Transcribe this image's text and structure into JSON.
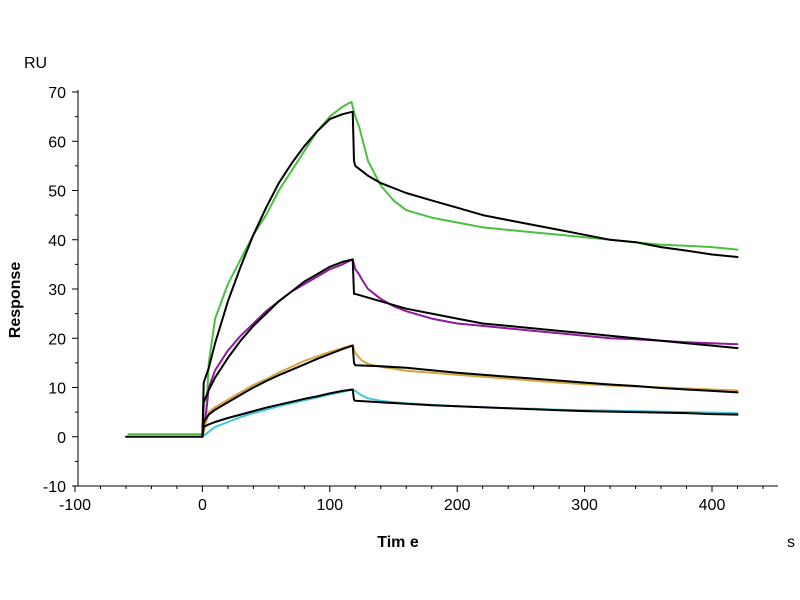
{
  "chart_data": {
    "type": "line",
    "title": "",
    "xlabel": "Tim e",
    "xunit": "s",
    "ylabel": "Response",
    "yunit": "RU",
    "xlim": [
      -100,
      460
    ],
    "ylim": [
      -10,
      70
    ],
    "xticks": [
      -100,
      0,
      100,
      200,
      300,
      400
    ],
    "yticks": [
      -10,
      0,
      10,
      20,
      30,
      40,
      50,
      60,
      70
    ],
    "grid": false,
    "legend": "none",
    "series": [
      {
        "color": "#4cbf40",
        "x": [
          -58,
          -30,
          0,
          3,
          5,
          10,
          20,
          30,
          40,
          50,
          60,
          70,
          80,
          90,
          100,
          110,
          117,
          120,
          123,
          125,
          130,
          140,
          150,
          160,
          180,
          200,
          220,
          240,
          260,
          280,
          300,
          320,
          340,
          360,
          380,
          400,
          420
        ],
        "y": [
          0.5,
          0.5,
          0.5,
          5,
          15,
          24,
          31,
          36,
          41,
          45,
          50,
          54,
          58,
          62,
          65,
          67,
          68,
          65,
          63,
          61,
          56,
          51,
          48,
          46,
          44.5,
          43.5,
          42.5,
          42,
          41.5,
          41,
          40.5,
          40,
          39.5,
          39,
          38.8,
          38.5,
          38
        ]
      },
      {
        "color": "#000000",
        "x": [
          -60,
          0,
          1,
          5,
          10,
          20,
          30,
          40,
          50,
          60,
          70,
          80,
          90,
          100,
          110,
          118,
          119,
          120,
          130,
          140,
          150,
          160,
          180,
          200,
          220,
          240,
          260,
          280,
          300,
          320,
          340,
          360,
          380,
          400,
          420
        ],
        "y": [
          0,
          0,
          11,
          14,
          19,
          27.5,
          34.5,
          41,
          46.5,
          51.5,
          55.5,
          59,
          62,
          64.5,
          65.5,
          66,
          56,
          55,
          53,
          51.5,
          50.5,
          49.5,
          48,
          46.5,
          45,
          44,
          43,
          42,
          41,
          40,
          39.5,
          38.5,
          37.8,
          37,
          36.5
        ]
      },
      {
        "color": "#8e1a9c",
        "x": [
          0,
          3,
          5,
          10,
          20,
          30,
          40,
          50,
          60,
          70,
          80,
          90,
          100,
          110,
          118,
          120,
          123,
          125,
          130,
          140,
          150,
          160,
          180,
          200,
          220,
          240,
          260,
          280,
          300,
          320,
          340,
          360,
          380,
          400,
          420
        ],
        "y": [
          0,
          5,
          10,
          13.5,
          17.5,
          20.5,
          23,
          25.5,
          27.5,
          29.5,
          31,
          32.5,
          34,
          35,
          36,
          34,
          33,
          32,
          30,
          28,
          26.5,
          25.5,
          24,
          23,
          22.5,
          22,
          21.5,
          21,
          20.5,
          20,
          19.8,
          19.5,
          19.2,
          19,
          18.8
        ]
      },
      {
        "color": "#000000",
        "x": [
          0,
          1,
          5,
          10,
          20,
          30,
          40,
          50,
          60,
          70,
          80,
          90,
          100,
          110,
          118,
          119,
          120,
          140,
          160,
          180,
          200,
          220,
          240,
          260,
          280,
          300,
          320,
          340,
          360,
          380,
          400,
          420
        ],
        "y": [
          0,
          7,
          9.5,
          12,
          16,
          19.5,
          22.5,
          25,
          27.5,
          29.5,
          31.5,
          33,
          34.5,
          35.5,
          36,
          29,
          29,
          27.5,
          26,
          25,
          24,
          23,
          22.5,
          22,
          21.5,
          21,
          20.5,
          20,
          19.5,
          19,
          18.5,
          18
        ]
      },
      {
        "color": "#d4a53f",
        "x": [
          0,
          3,
          5,
          10,
          20,
          30,
          40,
          50,
          60,
          70,
          80,
          90,
          100,
          110,
          118,
          120,
          125,
          130,
          140,
          150,
          160,
          180,
          200,
          220,
          240,
          260,
          280,
          300,
          320,
          340,
          360,
          380,
          400,
          420
        ],
        "y": [
          0,
          3,
          5,
          6,
          7.5,
          9,
          10.5,
          11.7,
          13,
          14.2,
          15.4,
          16.3,
          17.2,
          18,
          18.6,
          17,
          15.5,
          14.8,
          14.2,
          13.8,
          13.4,
          13,
          12.6,
          12.2,
          11.8,
          11.4,
          11,
          10.7,
          10.4,
          10.2,
          10,
          9.8,
          9.6,
          9.4
        ]
      },
      {
        "color": "#000000",
        "x": [
          0,
          1,
          5,
          10,
          20,
          30,
          40,
          50,
          60,
          70,
          80,
          90,
          100,
          110,
          118,
          119,
          120,
          140,
          160,
          180,
          200,
          220,
          240,
          260,
          280,
          300,
          320,
          340,
          360,
          380,
          400,
          420
        ],
        "y": [
          0,
          3,
          4.5,
          5.5,
          7,
          8.5,
          10,
          11.3,
          12.5,
          13.6,
          14.7,
          15.8,
          16.8,
          17.8,
          18.5,
          15,
          14.5,
          14.3,
          14,
          13.5,
          13,
          12.6,
          12.2,
          11.8,
          11.4,
          11,
          10.6,
          10.3,
          9.9,
          9.6,
          9.3,
          9
        ]
      },
      {
        "color": "#3cc8d8",
        "x": [
          0,
          5,
          10,
          20,
          30,
          40,
          50,
          60,
          70,
          80,
          90,
          100,
          110,
          118,
          120,
          125,
          130,
          140,
          150,
          160,
          180,
          200,
          220,
          240,
          260,
          280,
          300,
          320,
          340,
          360,
          380,
          400,
          420
        ],
        "y": [
          0,
          1,
          2,
          3,
          4,
          4.8,
          5.5,
          6.2,
          6.8,
          7.4,
          8,
          8.6,
          9.1,
          9.6,
          9.3,
          8.4,
          7.8,
          7.3,
          7,
          6.8,
          6.5,
          6.2,
          6,
          5.8,
          5.7,
          5.5,
          5.4,
          5.3,
          5.2,
          5.1,
          5,
          4.9,
          4.8
        ]
      },
      {
        "color": "#000000",
        "x": [
          0,
          1,
          5,
          10,
          20,
          30,
          40,
          50,
          60,
          70,
          80,
          90,
          100,
          110,
          118,
          119,
          120,
          140,
          160,
          180,
          200,
          220,
          240,
          260,
          280,
          300,
          320,
          340,
          360,
          380,
          400,
          420
        ],
        "y": [
          0,
          2,
          2.5,
          3,
          3.8,
          4.5,
          5.2,
          5.9,
          6.5,
          7.1,
          7.7,
          8.2,
          8.8,
          9.3,
          9.6,
          7.5,
          7.3,
          7,
          6.7,
          6.4,
          6.2,
          6,
          5.8,
          5.6,
          5.4,
          5.2,
          5.1,
          5,
          4.9,
          4.8,
          4.6,
          4.5
        ]
      }
    ]
  }
}
